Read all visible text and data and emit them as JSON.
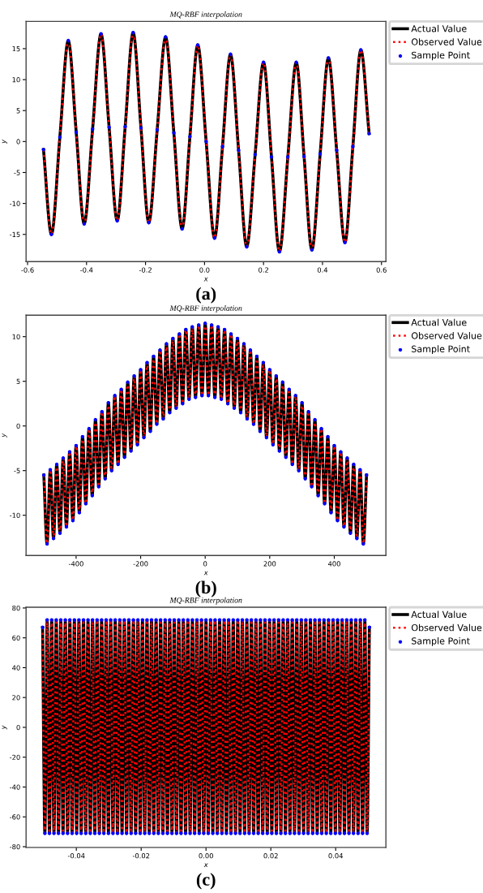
{
  "chart_data": [
    {
      "type": "line",
      "title": "MQ-RBF interpolation",
      "xlabel": "x",
      "ylabel": "y",
      "annotations": [
        "(a)"
      ],
      "legend": "top right",
      "grid": false,
      "xlim": [
        -0.605,
        0.615
      ],
      "ylim": [
        -19.4,
        19.4
      ],
      "xticks": [
        -0.6,
        -0.4,
        -0.2,
        {
          "value": 0,
          "label": "0.0"
        },
        0.2,
        0.4,
        0.6
      ],
      "yticks": [
        -15,
        -10,
        -5,
        0,
        5,
        10,
        15
      ],
      "x": [
        -0.546,
        -0.519,
        -0.4905,
        -0.462,
        -0.435,
        -0.408,
        -0.3795,
        -0.351,
        -0.3235,
        -0.296,
        -0.269,
        -0.242,
        -0.2155,
        -0.189,
        -0.1605,
        -0.132,
        -0.104,
        -0.076,
        -0.0495,
        -0.023,
        0.0055,
        0.034,
        0.061,
        0.088,
        0.1155,
        0.143,
        0.1715,
        0.2,
        0.227,
        0.254,
        0.2825,
        0.311,
        0.3375,
        0.364,
        0.392,
        0.42,
        0.448,
        0.476,
        0.503,
        0.53,
        0.558
      ],
      "series": [
        {
          "name": "Actual Value",
          "type": "line",
          "line_style": "solid",
          "marker": "none",
          "color": "#000000",
          "values": [
            -1.3,
            -15.0,
            0.7,
            16.3,
            1.5,
            -13.3,
            2.0,
            17.4,
            2.3,
            -12.8,
            2.4,
            17.6,
            2.2,
            -13.1,
            1.9,
            16.9,
            1.4,
            -14.1,
            0.8,
            15.6,
            0,
            -15.6,
            -0.8,
            14.1,
            -1.4,
            -17.0,
            -2.1,
            12.8,
            -2.5,
            -17.8,
            -2.5,
            12.8,
            -2.4,
            -17.5,
            -2.0,
            13.5,
            -1.4,
            -16.3,
            -0.8,
            14.8,
            1.3
          ]
        },
        {
          "name": "Observed Value",
          "type": "line",
          "line_style": "dotted",
          "marker": "none",
          "color": "#ff0000",
          "values": [
            -1.3,
            -15.0,
            0.7,
            16.3,
            1.5,
            -13.3,
            2.0,
            17.4,
            2.3,
            -12.8,
            2.4,
            17.6,
            2.2,
            -13.1,
            1.9,
            16.9,
            1.4,
            -14.1,
            0.8,
            15.6,
            0,
            -15.6,
            -0.8,
            14.1,
            -1.4,
            -17.0,
            -2.1,
            12.8,
            -2.5,
            -17.8,
            -2.5,
            12.8,
            -2.4,
            -17.5,
            -2.0,
            13.5,
            -1.4,
            -16.3,
            -0.8,
            14.8,
            1.3
          ]
        },
        {
          "name": "Sample Point",
          "type": "scatter",
          "marker": "circle",
          "color": "#0000ff",
          "values": [
            -1.3,
            -15.0,
            0.7,
            16.3,
            1.5,
            -13.3,
            2.0,
            17.4,
            2.3,
            -12.8,
            2.4,
            17.6,
            2.2,
            -13.1,
            1.9,
            16.9,
            1.4,
            -14.1,
            0.8,
            15.6,
            0,
            -15.6,
            -0.8,
            14.1,
            -1.4,
            -17.0,
            -2.1,
            12.8,
            -2.5,
            -17.8,
            -2.5,
            12.8,
            -2.4,
            -17.5,
            -2.0,
            13.5,
            -1.4,
            -16.3,
            -0.8,
            14.8,
            1.3
          ]
        }
      ]
    },
    {
      "type": "line",
      "title": "MQ-RBF interpolation",
      "xlabel": "x",
      "ylabel": "y",
      "annotations": [
        "(b)"
      ],
      "legend": "top right",
      "grid": false,
      "xlim": [
        -555,
        560
      ],
      "ylim": [
        -14.5,
        12.4
      ],
      "xticks": [
        -400,
        -200,
        0,
        200,
        400
      ],
      "yticks": [
        -10,
        -5,
        0,
        5,
        10
      ],
      "x": [
        -500,
        -490,
        -480,
        -470,
        -460,
        -450,
        -440,
        -430,
        -420,
        -410,
        -400,
        -390,
        -380,
        -370,
        -360,
        -350,
        -340,
        -330,
        -320,
        -310,
        -300,
        -290,
        -280,
        -270,
        -260,
        -250,
        -240,
        -230,
        -220,
        -210,
        -200,
        -190,
        -180,
        -170,
        -160,
        -150,
        -140,
        -130,
        -120,
        -110,
        -100,
        -90,
        -80,
        -70,
        -60,
        -50,
        -40,
        -30,
        -20,
        -10,
        0,
        10,
        20,
        30,
        40,
        50,
        60,
        70,
        80,
        90,
        100,
        110,
        120,
        130,
        140,
        150,
        160,
        170,
        180,
        190,
        200,
        210,
        220,
        230,
        240,
        250,
        260,
        270,
        280,
        290,
        300,
        310,
        320,
        330,
        340,
        350,
        360,
        370,
        380,
        390,
        400,
        410,
        420,
        430,
        440,
        450,
        460,
        470,
        480,
        490,
        500
      ],
      "series": [
        {
          "name": "Actual Value",
          "type": "line",
          "line_style": "solid",
          "marker": "none",
          "color": "#000000",
          "values": [
            -5.5,
            -13.2,
            -4.9,
            -12.6,
            -4.3,
            -12.0,
            -3.6,
            -11.3,
            -2.9,
            -10.6,
            -2.2,
            -9.7,
            -1.2,
            -8.7,
            -0.3,
            -7.8,
            0.7,
            -6.8,
            1.6,
            -5.9,
            2.6,
            -5.0,
            3.4,
            -4.3,
            4.1,
            -3.5,
            4.9,
            -2.8,
            5.6,
            -2.1,
            6.3,
            -1.3,
            7.1,
            -0.6,
            7.8,
            0.2,
            8.5,
            0.8,
            9.2,
            1.5,
            9.8,
            2.0,
            10.3,
            2.5,
            10.8,
            3.0,
            11.1,
            3.2,
            11.3,
            3.4,
            11.5,
            3.4,
            11.3,
            3.2,
            11.1,
            3.0,
            10.8,
            2.5,
            10.3,
            2.0,
            9.8,
            1.5,
            9.2,
            0.8,
            8.5,
            0.2,
            7.8,
            -0.6,
            7.1,
            -1.3,
            6.3,
            -2.1,
            5.6,
            -2.8,
            4.9,
            -3.5,
            4.1,
            -4.3,
            3.4,
            -5.0,
            2.6,
            -5.9,
            1.6,
            -6.8,
            0.7,
            -7.8,
            -0.3,
            -8.7,
            -1.2,
            -9.7,
            -2.2,
            -10.6,
            -2.9,
            -11.3,
            -3.6,
            -12.0,
            -4.3,
            -12.6,
            -4.9,
            -13.2,
            -5.5
          ]
        },
        {
          "name": "Observed Value",
          "type": "line",
          "line_style": "dotted",
          "marker": "none",
          "color": "#ff0000",
          "values": [
            -5.5,
            -13.2,
            -4.9,
            -12.6,
            -4.3,
            -12.0,
            -3.6,
            -11.3,
            -2.9,
            -10.6,
            -2.2,
            -9.7,
            -1.2,
            -8.7,
            -0.3,
            -7.8,
            0.7,
            -6.8,
            1.6,
            -5.9,
            2.6,
            -5.0,
            3.4,
            -4.3,
            4.1,
            -3.5,
            4.9,
            -2.8,
            5.6,
            -2.1,
            6.3,
            -1.3,
            7.1,
            -0.6,
            7.8,
            0.2,
            8.5,
            0.8,
            9.2,
            1.5,
            9.8,
            2.0,
            10.3,
            2.5,
            10.8,
            3.0,
            11.1,
            3.2,
            11.3,
            3.4,
            11.5,
            3.4,
            11.3,
            3.2,
            11.1,
            3.0,
            10.8,
            2.5,
            10.3,
            2.0,
            9.8,
            1.5,
            9.2,
            0.8,
            8.5,
            0.2,
            7.8,
            -0.6,
            7.1,
            -1.3,
            6.3,
            -2.1,
            5.6,
            -2.8,
            4.9,
            -3.5,
            4.1,
            -4.3,
            3.4,
            -5.0,
            2.6,
            -5.9,
            1.6,
            -6.8,
            0.7,
            -7.8,
            -0.3,
            -8.7,
            -1.2,
            -9.7,
            -2.2,
            -10.6,
            -2.9,
            -11.3,
            -3.6,
            -12.0,
            -4.3,
            -12.6,
            -4.9,
            -13.2,
            -5.5
          ]
        },
        {
          "name": "Sample Point",
          "type": "scatter",
          "marker": "circle",
          "color": "#0000ff",
          "values": [
            -5.5,
            -13.2,
            -4.9,
            -12.6,
            -4.3,
            -12.0,
            -3.6,
            -11.3,
            -2.9,
            -10.6,
            -2.2,
            -9.7,
            -1.2,
            -8.7,
            -0.3,
            -7.8,
            0.7,
            -6.8,
            1.6,
            -5.9,
            2.6,
            -5.0,
            3.4,
            -4.3,
            4.1,
            -3.5,
            4.9,
            -2.8,
            5.6,
            -2.1,
            6.3,
            -1.3,
            7.1,
            -0.6,
            7.8,
            0.2,
            8.5,
            0.8,
            9.2,
            1.5,
            9.8,
            2.0,
            10.3,
            2.5,
            10.8,
            3.0,
            11.1,
            3.2,
            11.3,
            3.4,
            11.5,
            3.4,
            11.3,
            3.2,
            11.1,
            3.0,
            10.8,
            2.5,
            10.3,
            2.0,
            9.8,
            1.5,
            9.2,
            0.8,
            8.5,
            0.2,
            7.8,
            -0.6,
            7.1,
            -1.3,
            6.3,
            -2.1,
            5.6,
            -2.8,
            4.9,
            -3.5,
            4.1,
            -4.3,
            3.4,
            -5.0,
            2.6,
            -5.9,
            1.6,
            -6.8,
            0.7,
            -7.8,
            -0.3,
            -8.7,
            -1.2,
            -9.7,
            -2.2,
            -10.6,
            -2.9,
            -11.3,
            -3.6,
            -12.0,
            -4.3,
            -12.6,
            -4.9,
            -13.2,
            -5.5
          ]
        }
      ]
    },
    {
      "type": "line",
      "title": "MQ-RBF interpolation",
      "xlabel": "x",
      "ylabel": "y",
      "annotations": [
        "(c)"
      ],
      "legend": "top right",
      "grid": false,
      "xlim": [
        -0.0555,
        0.0555
      ],
      "ylim": [
        -80.5,
        80.5
      ],
      "xticks": [
        -0.04,
        -0.02,
        {
          "value": 0,
          "label": "0.00"
        },
        0.02,
        0.04
      ],
      "yticks": [
        -80,
        -60,
        -40,
        -20,
        0,
        20,
        40,
        60,
        80
      ],
      "x": [
        -0.0504,
        -0.0497,
        -0.049,
        -0.0483,
        -0.0476,
        -0.0469,
        -0.0462,
        -0.0455,
        -0.0448,
        -0.0441,
        -0.0434,
        -0.0427,
        -0.042,
        -0.0413,
        -0.0406,
        -0.0399,
        -0.0392,
        -0.0385,
        -0.0378,
        -0.0371,
        -0.0364,
        -0.0357,
        -0.035,
        -0.0343,
        -0.0336,
        -0.0329,
        -0.0322,
        -0.0315,
        -0.0308,
        -0.0301,
        -0.0294,
        -0.0287,
        -0.028,
        -0.0273,
        -0.0266,
        -0.0259,
        -0.0252,
        -0.0245,
        -0.0238,
        -0.0231,
        -0.0224,
        -0.0217,
        -0.021,
        -0.0203,
        -0.0196,
        -0.0189,
        -0.0182,
        -0.0175,
        -0.0168,
        -0.0161,
        -0.0154,
        -0.0147,
        -0.014,
        -0.0133,
        -0.0126,
        -0.0119,
        -0.0112,
        -0.0105,
        -0.0098,
        -0.0091,
        -0.0084,
        -0.0077,
        -0.007,
        -0.0063,
        -0.0056,
        -0.0049,
        -0.0042,
        -0.0035,
        -0.0028,
        -0.0021,
        -0.0014,
        -0.0007,
        0,
        0.0007,
        0.0014,
        0.0021,
        0.0028,
        0.0035,
        0.0042,
        0.0049,
        0.0056,
        0.0063,
        0.007,
        0.0077,
        0.0084,
        0.0091,
        0.0098,
        0.0105,
        0.0112,
        0.0119,
        0.0126,
        0.0133,
        0.014,
        0.0147,
        0.0154,
        0.0161,
        0.0168,
        0.0175,
        0.0182,
        0.0189,
        0.0196,
        0.0203,
        0.021,
        0.0217,
        0.0224,
        0.0231,
        0.0238,
        0.0245,
        0.0252,
        0.0259,
        0.0266,
        0.0273,
        0.028,
        0.0287,
        0.0294,
        0.0301,
        0.0308,
        0.0315,
        0.0322,
        0.0329,
        0.0336,
        0.0343,
        0.035,
        0.0357,
        0.0364,
        0.0371,
        0.0378,
        0.0385,
        0.0392,
        0.0399,
        0.0406,
        0.0413,
        0.042,
        0.0427,
        0.0434,
        0.0441,
        0.0448,
        0.0455,
        0.0462,
        0.0469,
        0.0476,
        0.0483,
        0.049,
        0.0497,
        0.0504
      ],
      "series": [
        {
          "name": "Actual Value",
          "type": "line",
          "line_style": "solid",
          "marker": "none",
          "color": "#000000",
          "values": [
            67,
            -71,
            72,
            -71,
            72,
            -71,
            72,
            -71,
            72,
            -71,
            72,
            -71,
            72,
            -71,
            72,
            -71,
            72,
            -71,
            72,
            -71,
            72,
            -71,
            72,
            -71,
            72,
            -71,
            72,
            -71,
            72,
            -71,
            72,
            -71,
            72,
            -71,
            72,
            -71,
            72,
            -71,
            72,
            -71,
            72,
            -71,
            72,
            -71,
            72,
            -71,
            72,
            -71,
            72,
            -71,
            72,
            -71,
            72,
            -71,
            72,
            -71,
            72,
            -71,
            72,
            -71,
            72,
            -71,
            72,
            -71,
            72,
            -71,
            72,
            -71,
            72,
            -71,
            72,
            -71,
            72,
            -71,
            72,
            -71,
            72,
            -71,
            72,
            -71,
            72,
            -71,
            72,
            -71,
            72,
            -71,
            72,
            -71,
            72,
            -71,
            72,
            -71,
            72,
            -71,
            72,
            -71,
            72,
            -71,
            72,
            -71,
            72,
            -71,
            72,
            -71,
            72,
            -71,
            72,
            -71,
            72,
            -71,
            72,
            -71,
            72,
            -71,
            72,
            -71,
            72,
            -71,
            72,
            -71,
            72,
            -71,
            72,
            -71,
            72,
            -71,
            72,
            -71,
            72,
            -71,
            72,
            -71,
            72,
            -71,
            72,
            -71,
            72,
            -71,
            72,
            -71,
            72,
            -71,
            72,
            -71,
            67
          ]
        },
        {
          "name": "Observed Value",
          "type": "line",
          "line_style": "dotted",
          "marker": "none",
          "color": "#ff0000",
          "values": [
            67,
            -71,
            72,
            -71,
            72,
            -71,
            72,
            -71,
            72,
            -71,
            72,
            -71,
            72,
            -71,
            72,
            -71,
            72,
            -71,
            72,
            -71,
            72,
            -71,
            72,
            -71,
            72,
            -71,
            72,
            -71,
            72,
            -71,
            72,
            -71,
            72,
            -71,
            72,
            -71,
            72,
            -71,
            72,
            -71,
            72,
            -71,
            72,
            -71,
            72,
            -71,
            72,
            -71,
            72,
            -71,
            72,
            -71,
            72,
            -71,
            72,
            -71,
            72,
            -71,
            72,
            -71,
            72,
            -71,
            72,
            -71,
            72,
            -71,
            72,
            -71,
            72,
            -71,
            72,
            -71,
            72,
            -71,
            72,
            -71,
            72,
            -71,
            72,
            -71,
            72,
            -71,
            72,
            -71,
            72,
            -71,
            72,
            -71,
            72,
            -71,
            72,
            -71,
            72,
            -71,
            72,
            -71,
            72,
            -71,
            72,
            -71,
            72,
            -71,
            72,
            -71,
            72,
            -71,
            72,
            -71,
            72,
            -71,
            72,
            -71,
            72,
            -71,
            72,
            -71,
            72,
            -71,
            72,
            -71,
            72,
            -71,
            72,
            -71,
            72,
            -71,
            72,
            -71,
            72,
            -71,
            72,
            -71,
            72,
            -71,
            72,
            -71,
            72,
            -71,
            72,
            -71,
            72,
            -71,
            72,
            -71,
            67
          ]
        },
        {
          "name": "Sample Point",
          "type": "scatter",
          "marker": "circle",
          "color": "#0000ff",
          "values": [
            67,
            -71,
            72,
            -71,
            72,
            -71,
            72,
            -71,
            72,
            -71,
            72,
            -71,
            72,
            -71,
            72,
            -71,
            72,
            -71,
            72,
            -71,
            72,
            -71,
            72,
            -71,
            72,
            -71,
            72,
            -71,
            72,
            -71,
            72,
            -71,
            72,
            -71,
            72,
            -71,
            72,
            -71,
            72,
            -71,
            72,
            -71,
            72,
            -71,
            72,
            -71,
            72,
            -71,
            72,
            -71,
            72,
            -71,
            72,
            -71,
            72,
            -71,
            72,
            -71,
            72,
            -71,
            72,
            -71,
            72,
            -71,
            72,
            -71,
            72,
            -71,
            72,
            -71,
            72,
            -71,
            72,
            -71,
            72,
            -71,
            72,
            -71,
            72,
            -71,
            72,
            -71,
            72,
            -71,
            72,
            -71,
            72,
            -71,
            72,
            -71,
            72,
            -71,
            72,
            -71,
            72,
            -71,
            72,
            -71,
            72,
            -71,
            72,
            -71,
            72,
            -71,
            72,
            -71,
            72,
            -71,
            72,
            -71,
            72,
            -71,
            72,
            -71,
            72,
            -71,
            72,
            -71,
            72,
            -71,
            72,
            -71,
            72,
            -71,
            72,
            -71,
            72,
            -71,
            72,
            -71,
            72,
            -71,
            72,
            -71,
            72,
            -71,
            72,
            -71,
            72,
            -71,
            72,
            -71,
            72,
            -71,
            67
          ]
        }
      ]
    }
  ]
}
